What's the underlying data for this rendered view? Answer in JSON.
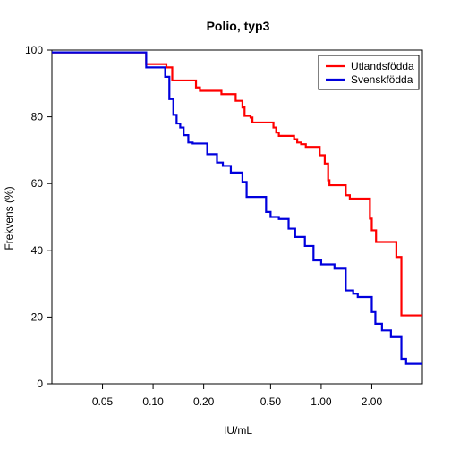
{
  "chart_data": {
    "type": "line",
    "title": "Polio, typ3",
    "xlabel": "IU/mL",
    "ylabel": "Frekvens (%)",
    "x_scale": "log",
    "xlim": [
      0.025,
      4.0
    ],
    "ylim": [
      0,
      100
    ],
    "x_ticks": [
      0.05,
      0.1,
      0.2,
      0.5,
      1.0,
      2.0
    ],
    "x_tick_labels": [
      "0.05",
      "0.10",
      "0.20",
      "0.50",
      "1.00",
      "2.00"
    ],
    "y_ticks": [
      0,
      20,
      40,
      60,
      80,
      100
    ],
    "y_tick_labels": [
      "0",
      "20",
      "40",
      "60",
      "80",
      "100"
    ],
    "reference_line_y": 50,
    "grid": false,
    "legend": {
      "position": "top-right"
    },
    "series": [
      {
        "name": "Utlandsfödda",
        "color": "#ff0000",
        "step": true,
        "x": [
          0.025,
          0.088,
          0.091,
          0.118,
          0.12,
          0.128,
          0.13,
          0.178,
          0.18,
          0.19,
          0.25,
          0.255,
          0.31,
          0.34,
          0.35,
          0.38,
          0.39,
          0.52,
          0.54,
          0.56,
          0.69,
          0.72,
          0.76,
          0.81,
          0.98,
          1.05,
          1.1,
          1.12,
          1.4,
          1.48,
          1.95,
          2.0,
          2.12,
          2.8,
          3.0,
          4.0
        ],
        "y": [
          99.3,
          99.3,
          95.8,
          95.8,
          94.8,
          94.8,
          90.9,
          90.9,
          88.8,
          87.8,
          87.8,
          86.8,
          84.8,
          82.8,
          80.3,
          79.8,
          78.3,
          76.8,
          75.3,
          74.3,
          73.3,
          72.3,
          71.8,
          71.0,
          68.5,
          66.0,
          61.0,
          59.5,
          56.5,
          55.5,
          49.5,
          46.0,
          42.5,
          38.0,
          20.5,
          20.5
        ]
      },
      {
        "name": "Svenskfödda",
        "color": "#0000dd",
        "step": true,
        "x": [
          0.025,
          0.088,
          0.091,
          0.118,
          0.125,
          0.132,
          0.138,
          0.145,
          0.152,
          0.162,
          0.172,
          0.21,
          0.24,
          0.26,
          0.29,
          0.34,
          0.36,
          0.47,
          0.5,
          0.56,
          0.64,
          0.7,
          0.8,
          0.9,
          1.0,
          1.2,
          1.4,
          1.55,
          1.65,
          2.0,
          2.1,
          2.3,
          2.6,
          3.0,
          3.2,
          4.0
        ],
        "y": [
          99.3,
          99.3,
          94.8,
          92.0,
          85.3,
          80.6,
          78.0,
          76.8,
          74.5,
          72.3,
          72.0,
          68.8,
          66.3,
          65.3,
          63.3,
          60.5,
          56.0,
          51.5,
          50.0,
          49.4,
          46.5,
          44.0,
          41.3,
          37.0,
          35.8,
          34.5,
          28.0,
          27.0,
          26.0,
          21.5,
          18.0,
          16.0,
          14.0,
          7.5,
          6.0,
          6.0
        ]
      }
    ]
  }
}
